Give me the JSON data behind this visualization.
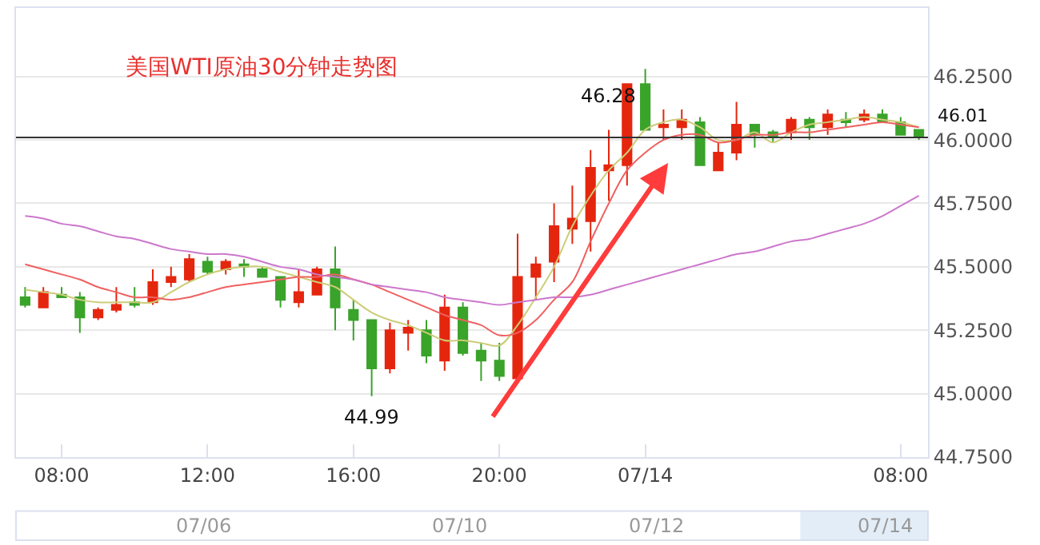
{
  "chart_data": {
    "type": "candlestick",
    "title": "美国WTI原油30分钟走势图",
    "categories": [
      null,
      null,
      "08:00",
      null,
      null,
      null,
      null,
      null,
      null,
      null,
      "12:00",
      null,
      null,
      null,
      null,
      null,
      null,
      null,
      "16:00",
      null,
      null,
      null,
      null,
      null,
      null,
      null,
      "20:00",
      null,
      null,
      null,
      null,
      null,
      null,
      null,
      "07/14",
      null,
      null,
      null,
      null,
      null,
      null,
      null,
      null,
      null,
      null,
      null,
      null,
      null,
      "08:00",
      null
    ],
    "ohlc": [
      [
        45.38,
        45.42,
        45.34,
        45.35
      ],
      [
        45.34,
        45.42,
        45.34,
        45.4
      ],
      [
        45.39,
        45.42,
        45.38,
        45.38
      ],
      [
        45.38,
        45.4,
        45.24,
        45.3
      ],
      [
        45.3,
        45.34,
        45.29,
        45.33
      ],
      [
        45.33,
        45.42,
        45.32,
        45.35
      ],
      [
        45.36,
        45.42,
        45.34,
        45.35
      ],
      [
        45.36,
        45.49,
        45.35,
        45.44
      ],
      [
        45.44,
        45.5,
        45.42,
        45.46
      ],
      [
        45.45,
        45.55,
        45.44,
        45.53
      ],
      [
        45.52,
        45.54,
        45.47,
        45.48
      ],
      [
        45.49,
        45.53,
        45.47,
        45.52
      ],
      [
        45.51,
        45.53,
        45.46,
        45.5
      ],
      [
        45.49,
        45.5,
        45.46,
        45.46
      ],
      [
        45.46,
        45.46,
        45.34,
        45.37
      ],
      [
        45.36,
        45.49,
        45.34,
        45.4
      ],
      [
        45.39,
        45.5,
        45.39,
        45.49
      ],
      [
        45.49,
        45.58,
        45.25,
        45.34
      ],
      [
        45.33,
        45.37,
        45.21,
        45.29
      ],
      [
        45.29,
        45.29,
        44.99,
        45.1
      ],
      [
        45.1,
        45.28,
        45.08,
        45.25
      ],
      [
        45.24,
        45.29,
        45.17,
        45.26
      ],
      [
        45.25,
        45.29,
        45.12,
        45.15
      ],
      [
        45.13,
        45.39,
        45.09,
        45.34
      ],
      [
        45.34,
        45.36,
        45.15,
        45.16
      ],
      [
        45.17,
        45.2,
        45.05,
        45.13
      ],
      [
        45.13,
        45.2,
        45.05,
        45.07
      ],
      [
        45.06,
        45.63,
        45.06,
        45.46
      ],
      [
        45.46,
        45.54,
        45.37,
        45.51
      ],
      [
        45.52,
        45.75,
        45.44,
        45.66
      ],
      [
        45.65,
        45.82,
        45.59,
        45.69
      ],
      [
        45.68,
        45.96,
        45.56,
        45.89
      ],
      [
        45.88,
        46.04,
        45.76,
        45.9
      ],
      [
        45.9,
        46.22,
        45.82,
        46.22
      ],
      [
        46.22,
        46.28,
        46.04,
        46.04
      ],
      [
        46.05,
        46.12,
        46.0,
        46.06
      ],
      [
        46.05,
        46.12,
        46.0,
        46.08
      ],
      [
        46.07,
        46.09,
        45.9,
        45.9
      ],
      [
        45.88,
        45.99,
        45.88,
        45.95
      ],
      [
        45.95,
        46.15,
        45.92,
        46.06
      ],
      [
        46.06,
        46.06,
        45.97,
        46.02
      ],
      [
        46.03,
        46.04,
        45.99,
        46.01
      ],
      [
        46.03,
        46.09,
        46.0,
        46.08
      ],
      [
        46.08,
        46.09,
        46.0,
        46.05
      ],
      [
        46.05,
        46.12,
        46.02,
        46.1
      ],
      [
        46.08,
        46.11,
        46.05,
        46.07
      ],
      [
        46.08,
        46.12,
        46.07,
        46.1
      ],
      [
        46.1,
        46.12,
        46.07,
        46.07
      ],
      [
        46.07,
        46.09,
        46.02,
        46.02
      ],
      [
        46.04,
        46.04,
        46.0,
        46.01
      ]
    ],
    "colors": [
      "#3aa32a",
      "#e5260f",
      "#3aa32a",
      "#3aa32a",
      "#e5260f",
      "#e5260f",
      "#3aa32a",
      "#e5260f",
      "#e5260f",
      "#e5260f",
      "#3aa32a",
      "#e5260f",
      "#3aa32a",
      "#3aa32a",
      "#3aa32a",
      "#e5260f",
      "#e5260f",
      "#3aa32a",
      "#3aa32a",
      "#3aa32a",
      "#e5260f",
      "#e5260f",
      "#3aa32a",
      "#e5260f",
      "#3aa32a",
      "#3aa32a",
      "#3aa32a",
      "#e5260f",
      "#e5260f",
      "#e5260f",
      "#e5260f",
      "#e5260f",
      "#e5260f",
      "#e5260f",
      "#3aa32a",
      "#e5260f",
      "#e5260f",
      "#3aa32a",
      "#e5260f",
      "#e5260f",
      "#3aa32a",
      "#3aa32a",
      "#e5260f",
      "#3aa32a",
      "#e5260f",
      "#3aa32a",
      "#e5260f",
      "#3aa32a",
      "#3aa32a",
      "#3aa32a"
    ],
    "series": [
      {
        "type": "line",
        "color": "#cccc77",
        "values": [
          45.41,
          45.4,
          45.39,
          45.37,
          45.36,
          45.36,
          45.36,
          45.36,
          45.4,
          45.44,
          45.47,
          45.49,
          45.5,
          45.5,
          45.48,
          45.46,
          45.44,
          45.42,
          45.37,
          45.32,
          45.29,
          45.27,
          45.24,
          45.21,
          45.21,
          45.2,
          45.19,
          45.27,
          45.38,
          45.5,
          45.66,
          45.78,
          45.88,
          45.95,
          46.04,
          46.07,
          46.08,
          46.05,
          46.0,
          46.0,
          46.03,
          45.99,
          46.03,
          46.06,
          46.07,
          46.08,
          46.09,
          46.08,
          46.07,
          46.05
        ]
      },
      {
        "type": "line",
        "color": "#f06060",
        "values": [
          45.51,
          45.49,
          45.47,
          45.45,
          45.42,
          45.4,
          45.38,
          45.38,
          45.37,
          45.38,
          45.4,
          45.42,
          45.43,
          45.44,
          45.45,
          45.46,
          45.46,
          45.47,
          45.45,
          45.43,
          45.4,
          45.37,
          45.34,
          45.31,
          45.29,
          45.27,
          45.23,
          45.24,
          45.29,
          45.37,
          45.44,
          45.6,
          45.75,
          45.88,
          45.95,
          46.0,
          46.02,
          46.02,
          45.99,
          46.0,
          46.02,
          46.02,
          46.03,
          46.03,
          46.04,
          46.05,
          46.06,
          46.07,
          46.06,
          46.05
        ]
      },
      {
        "type": "line",
        "color": "#cc77cc",
        "values": [
          45.7,
          45.69,
          45.67,
          45.66,
          45.64,
          45.62,
          45.61,
          45.59,
          45.57,
          45.56,
          45.55,
          45.55,
          45.54,
          45.52,
          45.5,
          45.49,
          45.47,
          45.46,
          45.45,
          45.43,
          45.42,
          45.41,
          45.4,
          45.38,
          45.37,
          45.36,
          45.35,
          45.36,
          45.37,
          45.38,
          45.38,
          45.39,
          45.41,
          45.43,
          45.45,
          45.47,
          45.49,
          45.51,
          45.53,
          45.55,
          45.56,
          45.58,
          45.6,
          45.61,
          45.63,
          45.65,
          45.67,
          45.7,
          45.74,
          45.78
        ]
      }
    ],
    "ylim": [
      44.75,
      46.52
    ],
    "yticks": [
      {
        "value": 44.75,
        "label": "44.7500"
      },
      {
        "value": 45.0,
        "label": "45.0000"
      },
      {
        "value": 45.25,
        "label": "45.2500"
      },
      {
        "value": 45.5,
        "label": "45.5000"
      },
      {
        "value": 45.75,
        "label": "45.7500"
      },
      {
        "value": 46.0,
        "label": "46.0000"
      },
      {
        "value": 46.25,
        "label": "46.2500"
      }
    ],
    "grid": "y",
    "ref_lines": [
      {
        "axis": "y",
        "value": 46.01,
        "label": "46.01",
        "color": "#333333"
      }
    ],
    "annotations": [
      "46.28",
      {
        "text": "44.99",
        "y": 44.99
      },
      "07/06",
      "07/10",
      "07/12",
      "07/14"
    ]
  }
}
